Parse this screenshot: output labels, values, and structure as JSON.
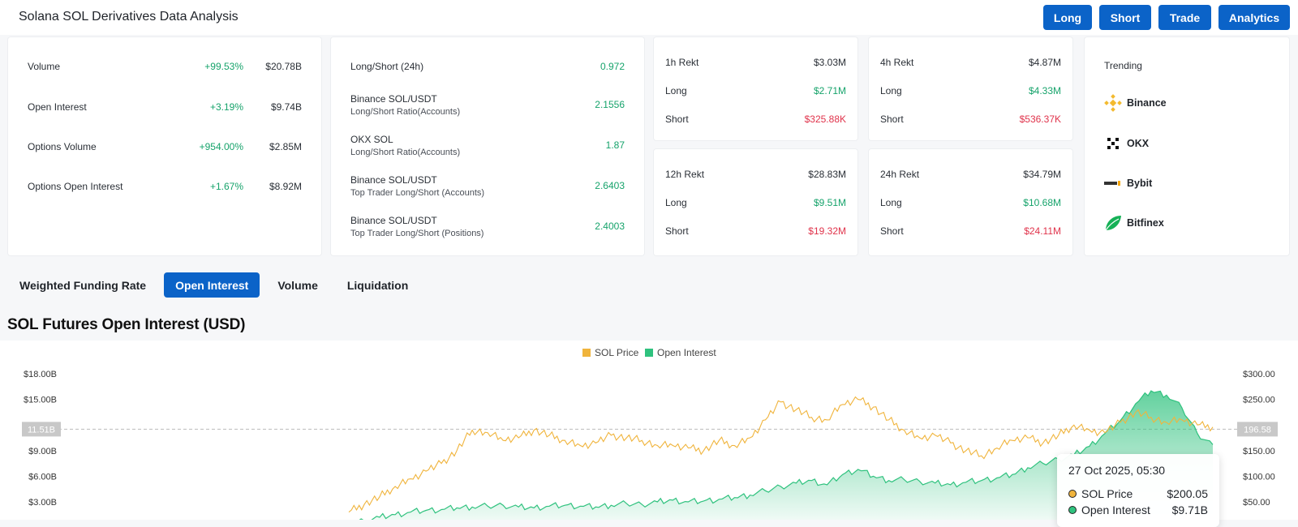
{
  "header": {
    "title": "Solana SOL Derivatives Data Analysis",
    "buttons": [
      "Long",
      "Short",
      "Trade",
      "Analytics"
    ]
  },
  "summary": {
    "rows": [
      {
        "label": "Volume",
        "change": "+99.53%",
        "value": "$20.78B"
      },
      {
        "label": "Open Interest",
        "change": "+3.19%",
        "value": "$9.74B"
      },
      {
        "label": "Options Volume",
        "change": "+954.00%",
        "value": "$2.85M"
      },
      {
        "label": "Options Open Interest",
        "change": "+1.67%",
        "value": "$8.92M"
      }
    ]
  },
  "long_short": {
    "rows": [
      {
        "label": "Long/Short (24h)",
        "sub": "",
        "value": "0.972"
      },
      {
        "label": "Binance SOL/USDT",
        "sub": "Long/Short Ratio(Accounts)",
        "value": "2.1556"
      },
      {
        "label": "OKX SOL",
        "sub": "Long/Short Ratio(Accounts)",
        "value": "1.87"
      },
      {
        "label": "Binance SOL/USDT",
        "sub": "Top Trader Long/Short (Accounts)",
        "value": "2.6403"
      },
      {
        "label": "Binance SOL/USDT",
        "sub": "Top Trader Long/Short (Positions)",
        "value": "2.4003"
      }
    ]
  },
  "rekt": {
    "h1": {
      "title": "1h Rekt",
      "total": "$3.03M",
      "long_label": "Long",
      "long": "$2.71M",
      "short_label": "Short",
      "short": "$325.88K"
    },
    "h4": {
      "title": "4h Rekt",
      "total": "$4.87M",
      "long_label": "Long",
      "long": "$4.33M",
      "short_label": "Short",
      "short": "$536.37K"
    },
    "h12": {
      "title": "12h Rekt",
      "total": "$28.83M",
      "long_label": "Long",
      "long": "$9.51M",
      "short_label": "Short",
      "short": "$19.32M"
    },
    "h24": {
      "title": "24h Rekt",
      "total": "$34.79M",
      "long_label": "Long",
      "long": "$10.68M",
      "short_label": "Short",
      "short": "$24.11M"
    }
  },
  "trending": {
    "title": "Trending",
    "exchanges": [
      "Binance",
      "OKX",
      "Bybit",
      "Bitfinex"
    ]
  },
  "tabs": {
    "items": [
      "Weighted Funding Rate",
      "Open Interest",
      "Volume",
      "Liquidation"
    ],
    "active": 1
  },
  "colors": {
    "accent": "#0b63c8",
    "positive": "#16a36b",
    "negative": "#e0334b",
    "price_line": "#f0b43c",
    "oi_fill": "#2fc27e"
  },
  "chart_data": {
    "type": "area",
    "title": "SOL Futures Open Interest (USD)",
    "legend": [
      "SOL Price",
      "Open Interest"
    ],
    "legend_position": "top-center",
    "left_axis": {
      "ticks": [
        "$18.00B",
        "$15.00B",
        "$9.00B",
        "$6.00B",
        "$3.00B"
      ],
      "tick_values": [
        18,
        15,
        9,
        6,
        3
      ],
      "range": [
        0,
        19.5
      ]
    },
    "right_axis": {
      "ticks": [
        "$300.00",
        "$250.00",
        "$150.00",
        "$100.00",
        "$50.00"
      ],
      "tick_values": [
        300,
        250,
        150,
        100,
        50
      ],
      "range": [
        0,
        325
      ]
    },
    "crosshair": {
      "left_label": "11.51B",
      "left_value": 11.51,
      "right_label": "196.58"
    },
    "series": [
      {
        "name": "SOL Price",
        "axis": "right",
        "values": [
          30,
          45,
          60,
          80,
          95,
          110,
          125,
          150,
          190,
          185,
          170,
          175,
          190,
          180,
          170,
          160,
          165,
          180,
          175,
          170,
          160,
          160,
          155,
          150,
          170,
          160,
          175,
          210,
          245,
          230,
          215,
          210,
          240,
          250,
          235,
          210,
          190,
          175,
          180,
          165,
          150,
          140,
          155,
          170,
          175,
          165,
          180,
          200,
          190,
          185,
          205,
          225,
          215,
          205,
          210,
          200,
          196
        ]
      },
      {
        "name": "Open Interest",
        "axis": "left",
        "values": [
          0.5,
          0.8,
          1.2,
          1.5,
          1.8,
          2.0,
          2.1,
          2.3,
          2.4,
          2.5,
          2.6,
          2.4,
          2.3,
          2.5,
          2.6,
          2.5,
          2.4,
          2.6,
          2.8,
          2.7,
          3.0,
          3.2,
          3.0,
          3.1,
          3.3,
          3.5,
          3.8,
          4.3,
          4.8,
          5.2,
          5.5,
          5.0,
          6.2,
          6.8,
          6.0,
          5.5,
          5.6,
          5.4,
          5.2,
          5.0,
          5.3,
          5.5,
          5.8,
          6.2,
          7.0,
          7.5,
          8.0,
          8.5,
          9.5,
          11.0,
          12.5,
          14.5,
          16.0,
          15.5,
          14.0,
          11.0,
          9.7
        ]
      }
    ],
    "tooltip": {
      "date": "27 Oct 2025, 05:30",
      "price_label": "SOL Price",
      "price": "$200.05",
      "oi_label": "Open Interest",
      "oi": "$9.71B"
    }
  }
}
